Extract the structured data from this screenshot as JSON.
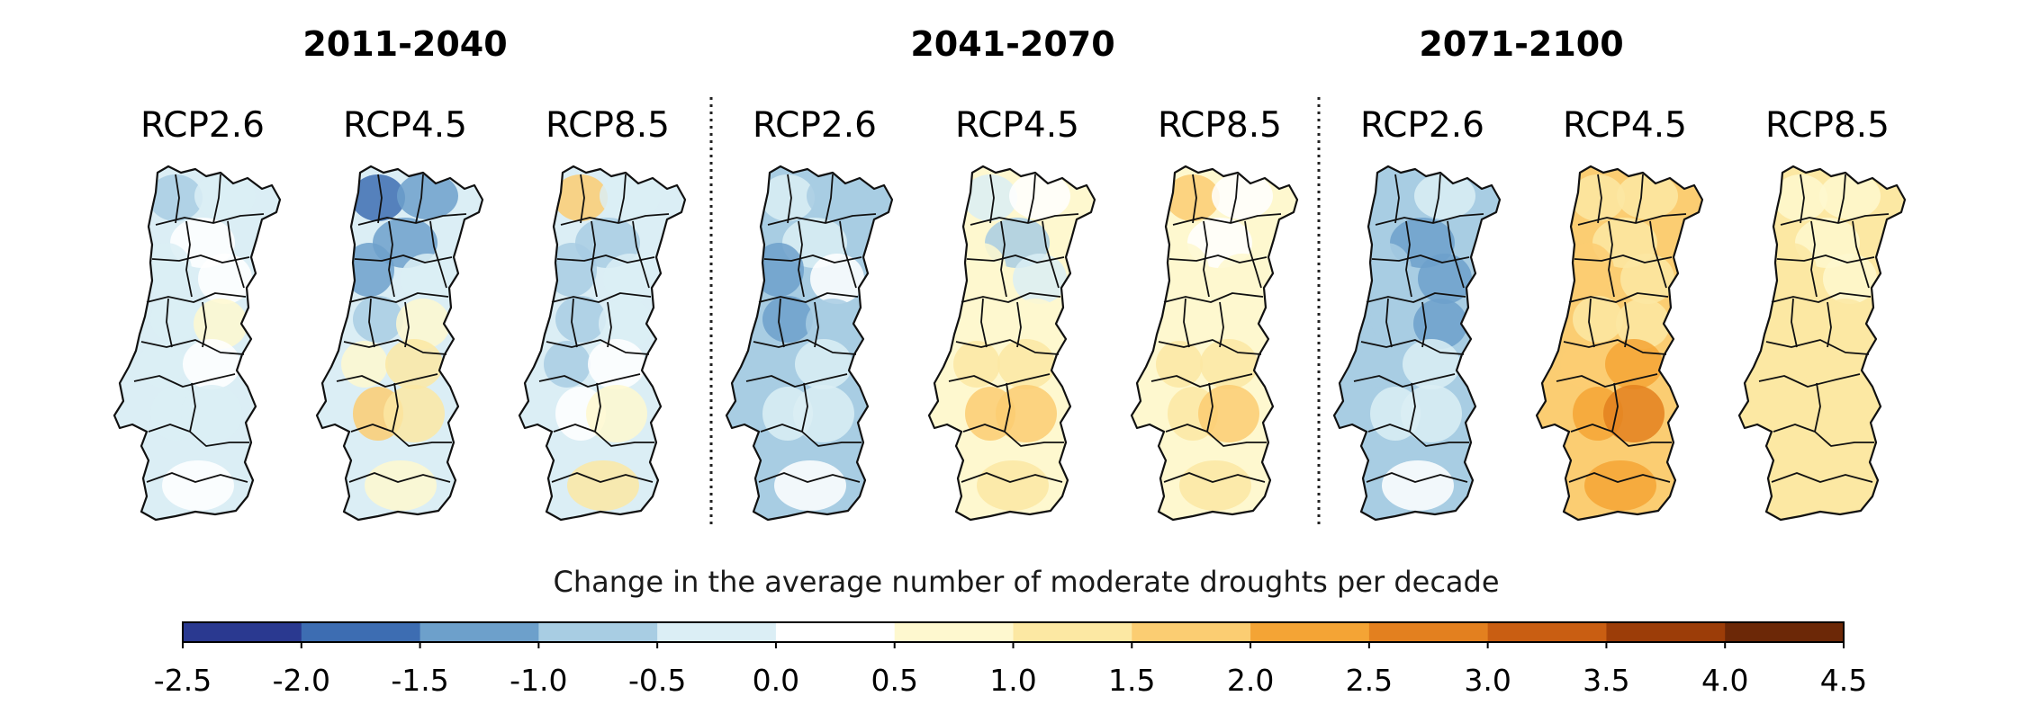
{
  "periods": [
    {
      "title": "2011-2040",
      "scenarios": [
        {
          "label": "RCP2.6",
          "pattern": [
            -0.6,
            -0.4,
            0.2,
            -0.5,
            0.4,
            -0.2,
            0.5,
            -0.3,
            0.3,
            -0.4,
            -0.2,
            0.3
          ]
        },
        {
          "label": "RCP4.5",
          "pattern": [
            -1.6,
            -1.4,
            -1.1,
            -1.5,
            -0.4,
            -0.7,
            0.6,
            0.8,
            1.2,
            1.6,
            1.3,
            0.8
          ]
        },
        {
          "label": "RCP8.5",
          "pattern": [
            1.5,
            -0.5,
            -0.6,
            -0.8,
            -0.2,
            -0.7,
            -0.4,
            -0.6,
            0.2,
            0.4,
            0.6,
            1.0
          ]
        }
      ]
    },
    {
      "title": "2041-2070",
      "scenarios": [
        {
          "label": "RCP2.6",
          "pattern": [
            -0.4,
            -0.6,
            -0.2,
            -1.2,
            0.1,
            -1.5,
            -1.0,
            -0.8,
            -0.5,
            -0.3,
            -0.2,
            0.0
          ]
        },
        {
          "label": "RCP4.5",
          "pattern": [
            -0.3,
            0.3,
            -0.6,
            0.5,
            -0.2,
            0.6,
            0.8,
            1.0,
            1.4,
            1.9,
            1.8,
            1.3
          ]
        },
        {
          "label": "RCP8.5",
          "pattern": [
            1.6,
            0.4,
            0.3,
            0.6,
            0.5,
            0.8,
            0.9,
            1.1,
            1.2,
            1.4,
            1.5,
            1.2
          ]
        }
      ]
    },
    {
      "title": "2071-2100",
      "scenarios": [
        {
          "label": "RCP2.6",
          "pattern": [
            -0.8,
            -0.5,
            -1.2,
            -0.7,
            -1.4,
            -0.9,
            -1.2,
            -0.6,
            -0.5,
            -0.3,
            -0.2,
            0.0
          ]
        },
        {
          "label": "RCP4.5",
          "pattern": [
            1.1,
            1.3,
            1.2,
            1.6,
            1.3,
            1.2,
            1.4,
            1.5,
            2.0,
            2.2,
            2.6,
            2.1
          ]
        },
        {
          "label": "RCP8.5",
          "pattern": [
            0.6,
            0.9,
            0.8,
            1.0,
            0.9,
            1.1,
            1.0,
            1.2,
            1.1,
            1.3,
            1.3,
            1.4
          ]
        }
      ]
    }
  ],
  "colorbar": {
    "title": "Change in the average number of moderate droughts per decade",
    "ticks": [
      "-2.5",
      "-2.0",
      "-1.5",
      "-1.0",
      "-0.5",
      "0.0",
      "0.5",
      "1.0",
      "1.5",
      "2.0",
      "2.5",
      "3.0",
      "3.5",
      "4.0",
      "4.5"
    ],
    "min": -2.5,
    "max": 4.5,
    "step": 0.5,
    "colors": [
      "#2a3990",
      "#3d6db2",
      "#6da0cb",
      "#a8cde3",
      "#dbeef5",
      "#ffffff",
      "#fef8cf",
      "#fce8a3",
      "#fbcd72",
      "#f4a435",
      "#e3801f",
      "#c95e12",
      "#9c3d08",
      "#6c2807"
    ]
  }
}
